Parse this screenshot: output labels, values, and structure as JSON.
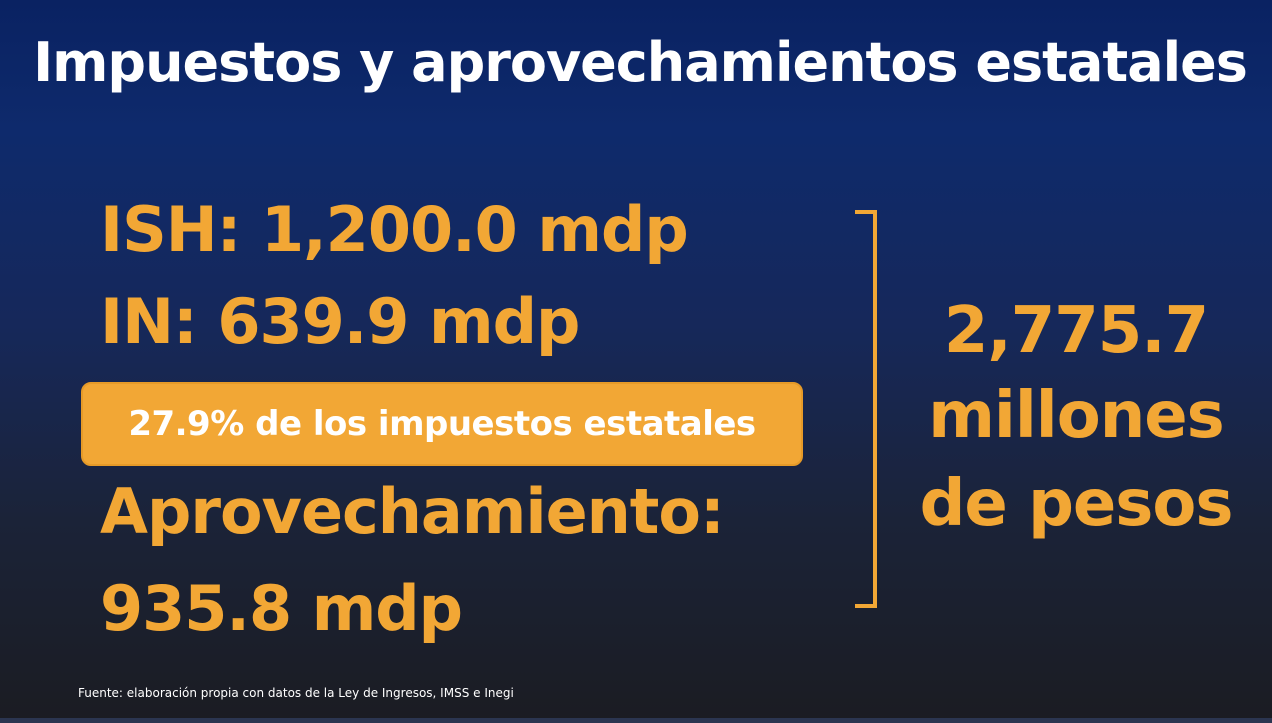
{
  "slide": {
    "title": "Impuestos y aprovechamientos estatales",
    "items": {
      "ish": "ISH: 1,200.0 mdp",
      "in": "IN: 639.9 mdp",
      "highlight": "27.9% de los impuestos estatales",
      "aprovechamiento_label": "Aprovechamiento:",
      "aprovechamiento_value": "935.8 mdp"
    },
    "total": {
      "number": "2,775.7",
      "unit_line1": "millones",
      "unit_line2": "de pesos"
    },
    "source": "Fuente: elaboración propia con datos de la Ley de Ingresos, IMSS e Inegi"
  },
  "colors": {
    "accent": "#f2a735",
    "text": "#ffffff",
    "background_top": "#0a2262",
    "background_bottom": "#1b1c22"
  }
}
